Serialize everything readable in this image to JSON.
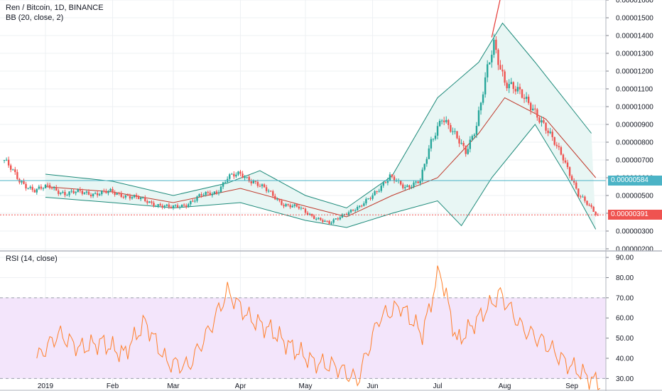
{
  "legend": {
    "symbol": "Ren / Bitcoin, 1D, BINANCE",
    "bb": "BB (20, close, 2)",
    "rsi": "RSI (14, close)"
  },
  "badges": {
    "band_value": "0.00000584",
    "last_price": "0.00000391"
  },
  "colors": {
    "up": "#26a69a",
    "down": "#ef5350",
    "bb_basis": "#c0392b",
    "bb_band": "#1d8a7a",
    "bb_fill": "#e8f6f4",
    "band_badge": "#4bb3c6",
    "last_badge": "#ef5350",
    "trendline": "#e53935",
    "rsi_line": "#ff7f2a",
    "rsi_fill": "#f3e5fb",
    "grid": "#eef0f3",
    "axis_text": "#131722"
  },
  "chart_data": [
    {
      "type": "candlestick",
      "title": "Ren / Bitcoin, 1D, BINANCE",
      "indicator": "BB (20, close, 2)",
      "x_ticks": [
        "2019",
        "Feb",
        "Mar",
        "Apr",
        "May",
        "Jun",
        "Jul",
        "Aug",
        "Sep"
      ],
      "y_ticks": [
        "0.00000200",
        "0.00000300",
        "0.00000400",
        "0.00000500",
        "0.00000600",
        "0.00000700",
        "0.00000800",
        "0.00000900",
        "0.00001000",
        "0.00001100",
        "0.00001200",
        "0.00001300",
        "0.00001400",
        "0.00001500",
        "0.00001600"
      ],
      "ylim": [
        2e-06,
        1.6e-05
      ],
      "close_series": {
        "name": "close",
        "points": [
          [
            "2018-12-13",
            7e-06
          ],
          [
            "2018-12-20",
            5.8e-06
          ],
          [
            "2018-12-27",
            5.3e-06
          ],
          [
            "2019-01-03",
            5.5e-06
          ],
          [
            "2019-01-10",
            5.1e-06
          ],
          [
            "2019-01-17",
            5.2e-06
          ],
          [
            "2019-01-24",
            5.1e-06
          ],
          [
            "2019-01-31",
            5.2e-06
          ],
          [
            "2019-02-07",
            5e-06
          ],
          [
            "2019-02-14",
            4.8e-06
          ],
          [
            "2019-02-21",
            4.5e-06
          ],
          [
            "2019-02-28",
            4.3e-06
          ],
          [
            "2019-03-07",
            4.5e-06
          ],
          [
            "2019-03-14",
            5e-06
          ],
          [
            "2019-03-21",
            5.2e-06
          ],
          [
            "2019-03-26",
            6e-06
          ],
          [
            "2019-04-01",
            6.2e-06
          ],
          [
            "2019-04-07",
            5.8e-06
          ],
          [
            "2019-04-14",
            5.2e-06
          ],
          [
            "2019-04-21",
            4.5e-06
          ],
          [
            "2019-04-28",
            4.3e-06
          ],
          [
            "2019-05-05",
            3.8e-06
          ],
          [
            "2019-05-12",
            3.4e-06
          ],
          [
            "2019-05-19",
            4e-06
          ],
          [
            "2019-05-26",
            4.3e-06
          ],
          [
            "2019-06-02",
            5.2e-06
          ],
          [
            "2019-06-09",
            6e-06
          ],
          [
            "2019-06-16",
            5.5e-06
          ],
          [
            "2019-06-23",
            5.8e-06
          ],
          [
            "2019-06-28",
            8e-06
          ],
          [
            "2019-07-03",
            9.5e-06
          ],
          [
            "2019-07-08",
            8.5e-06
          ],
          [
            "2019-07-14",
            7.5e-06
          ],
          [
            "2019-07-19",
            9e-06
          ],
          [
            "2019-07-24",
            1.2e-05
          ],
          [
            "2019-07-27",
            1.35e-05
          ],
          [
            "2019-08-01",
            1.15e-05
          ],
          [
            "2019-08-07",
            1.08e-05
          ],
          [
            "2019-08-14",
            1e-05
          ],
          [
            "2019-08-21",
            8.5e-06
          ],
          [
            "2019-08-28",
            7.2e-06
          ],
          [
            "2019-09-04",
            5e-06
          ],
          [
            "2019-09-10",
            4.3e-06
          ],
          [
            "2019-09-13",
            3.9e-06
          ]
        ]
      },
      "bb_upper": [
        [
          "2019-01-01",
          6.2e-06
        ],
        [
          "2019-02-01",
          5.8e-06
        ],
        [
          "2019-03-01",
          5e-06
        ],
        [
          "2019-03-26",
          5.7e-06
        ],
        [
          "2019-04-10",
          6.4e-06
        ],
        [
          "2019-05-01",
          5e-06
        ],
        [
          "2019-05-20",
          4.3e-06
        ],
        [
          "2019-06-10",
          6.1e-06
        ],
        [
          "2019-07-01",
          1.05e-05
        ],
        [
          "2019-07-20",
          1.25e-05
        ],
        [
          "2019-07-31",
          1.47e-05
        ],
        [
          "2019-08-15",
          1.25e-05
        ],
        [
          "2019-09-10",
          8.5e-06
        ]
      ],
      "bb_lower": [
        [
          "2019-01-01",
          4.9e-06
        ],
        [
          "2019-02-01",
          4.6e-06
        ],
        [
          "2019-03-01",
          4.3e-06
        ],
        [
          "2019-04-01",
          4.6e-06
        ],
        [
          "2019-05-01",
          3.6e-06
        ],
        [
          "2019-05-20",
          3.2e-06
        ],
        [
          "2019-06-10",
          4e-06
        ],
        [
          "2019-07-01",
          4.7e-06
        ],
        [
          "2019-07-12",
          3.3e-06
        ],
        [
          "2019-07-26",
          6e-06
        ],
        [
          "2019-08-15",
          9e-06
        ],
        [
          "2019-08-30",
          6e-06
        ],
        [
          "2019-09-12",
          3.1e-06
        ]
      ],
      "bb_basis": [
        [
          "2019-01-01",
          5.5e-06
        ],
        [
          "2019-02-01",
          5.2e-06
        ],
        [
          "2019-03-01",
          4.6e-06
        ],
        [
          "2019-04-01",
          5.4e-06
        ],
        [
          "2019-05-01",
          4.4e-06
        ],
        [
          "2019-05-20",
          3.8e-06
        ],
        [
          "2019-06-10",
          5e-06
        ],
        [
          "2019-07-01",
          6e-06
        ],
        [
          "2019-07-20",
          8.5e-06
        ],
        [
          "2019-08-01",
          1.05e-05
        ],
        [
          "2019-08-20",
          9.3e-06
        ],
        [
          "2019-09-12",
          6e-06
        ]
      ],
      "trendline": [
        [
          "2019-07-26",
          1.39e-05
        ],
        [
          "2019-09-15",
          4.19e-05
        ]
      ],
      "band_value": 5.84e-06,
      "last_price": 3.91e-06
    },
    {
      "type": "line",
      "title": "RSI (14, close)",
      "y_ticks": [
        "30.00",
        "40.00",
        "50.00",
        "60.00",
        "70.00",
        "80.00",
        "90.00"
      ],
      "ylim": [
        24.5,
        92.5
      ],
      "band": [
        30,
        70
      ],
      "x": [
        "2018-12-28",
        "2019-01-07",
        "2019-01-17",
        "2019-01-27",
        "2019-02-06",
        "2019-02-16",
        "2019-02-26",
        "2019-03-08",
        "2019-03-18",
        "2019-03-26",
        "2019-04-05",
        "2019-04-15",
        "2019-04-25",
        "2019-05-05",
        "2019-05-15",
        "2019-05-25",
        "2019-06-04",
        "2019-06-14",
        "2019-06-24",
        "2019-07-02",
        "2019-07-10",
        "2019-07-20",
        "2019-07-30",
        "2019-08-09",
        "2019-08-19",
        "2019-08-29",
        "2019-09-08",
        "2019-09-14"
      ],
      "values": [
        40,
        52,
        45,
        48,
        42,
        58,
        38,
        36,
        55,
        73,
        60,
        54,
        45,
        38,
        36,
        29,
        60,
        66,
        52,
        84,
        48,
        60,
        72,
        55,
        48,
        38,
        31,
        27
      ]
    }
  ]
}
